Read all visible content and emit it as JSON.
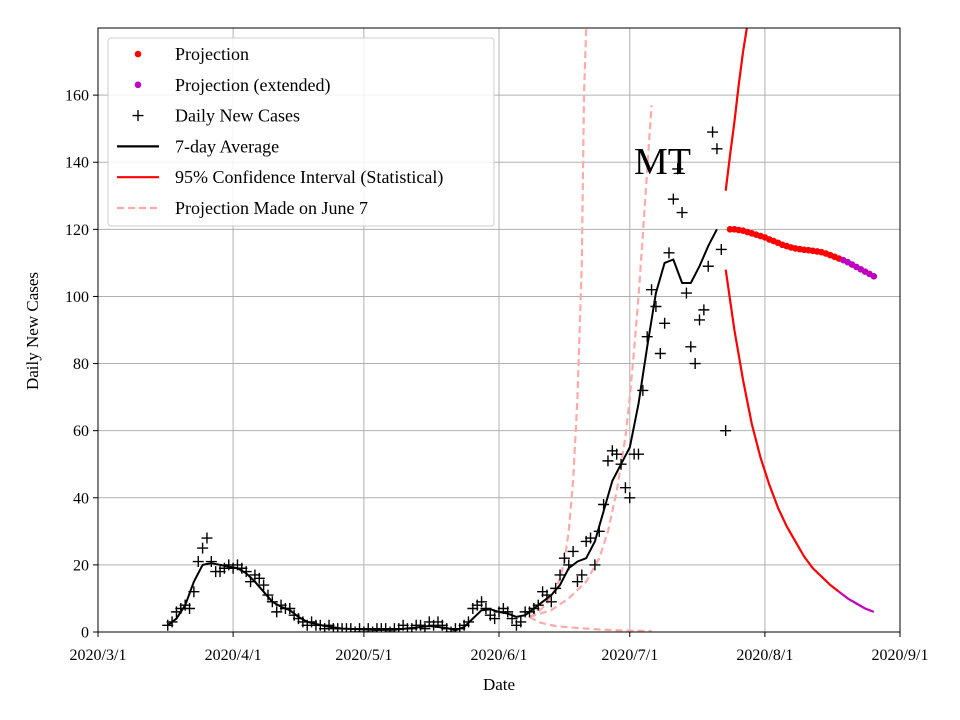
{
  "chart_data": {
    "type": "line",
    "state_label": "MT",
    "xlabel": "Date",
    "ylabel": "Daily New Cases",
    "xlim": [
      0,
      184
    ],
    "ylim": [
      0,
      180
    ],
    "x_ticks": [
      {
        "day": 0,
        "label": "2020/3/1"
      },
      {
        "day": 31,
        "label": "2020/4/1"
      },
      {
        "day": 61,
        "label": "2020/5/1"
      },
      {
        "day": 92,
        "label": "2020/6/1"
      },
      {
        "day": 122,
        "label": "2020/7/1"
      },
      {
        "day": 153,
        "label": "2020/8/1"
      },
      {
        "day": 184,
        "label": "2020/9/1"
      }
    ],
    "y_ticks": [
      0,
      20,
      40,
      60,
      80,
      100,
      120,
      140,
      160
    ],
    "grid": true,
    "legend": {
      "placement": "top-left",
      "entries": [
        {
          "label": "Projection",
          "kind": "dot",
          "color": "#ff0000"
        },
        {
          "label": "Projection (extended)",
          "kind": "dot",
          "color": "#bf00bf"
        },
        {
          "label": "Daily New Cases",
          "kind": "plus",
          "color": "#000000"
        },
        {
          "label": "7-day Average",
          "kind": "line",
          "color": "#000000"
        },
        {
          "label": "95% Confidence Interval (Statistical)",
          "kind": "line",
          "color": "#ff0000"
        },
        {
          "label": "Projection Made on June 7",
          "kind": "dash",
          "color": "#ffaaaa"
        }
      ]
    },
    "daily_new_cases": [
      [
        16,
        2
      ],
      [
        17,
        3
      ],
      [
        18,
        6
      ],
      [
        19,
        7
      ],
      [
        20,
        8
      ],
      [
        21,
        7
      ],
      [
        22,
        12
      ],
      [
        23,
        21
      ],
      [
        24,
        25
      ],
      [
        25,
        28
      ],
      [
        26,
        21
      ],
      [
        27,
        18
      ],
      [
        28,
        18
      ],
      [
        29,
        19
      ],
      [
        30,
        20
      ],
      [
        31,
        19
      ],
      [
        32,
        20
      ],
      [
        33,
        19
      ],
      [
        34,
        18
      ],
      [
        35,
        15
      ],
      [
        36,
        17
      ],
      [
        37,
        16
      ],
      [
        38,
        14
      ],
      [
        39,
        11
      ],
      [
        40,
        9
      ],
      [
        41,
        6
      ],
      [
        42,
        8
      ],
      [
        43,
        7
      ],
      [
        44,
        7
      ],
      [
        45,
        5
      ],
      [
        46,
        4
      ],
      [
        47,
        3
      ],
      [
        48,
        2
      ],
      [
        49,
        3
      ],
      [
        50,
        2
      ],
      [
        51,
        2
      ],
      [
        52,
        1
      ],
      [
        53,
        2
      ],
      [
        54,
        1
      ],
      [
        55,
        1
      ],
      [
        56,
        1
      ],
      [
        57,
        1
      ],
      [
        58,
        1
      ],
      [
        59,
        0
      ],
      [
        60,
        1
      ],
      [
        61,
        0
      ],
      [
        62,
        1
      ],
      [
        63,
        0
      ],
      [
        64,
        1
      ],
      [
        65,
        1
      ],
      [
        66,
        1
      ],
      [
        67,
        0
      ],
      [
        68,
        1
      ],
      [
        69,
        1
      ],
      [
        70,
        2
      ],
      [
        71,
        1
      ],
      [
        72,
        1
      ],
      [
        73,
        2
      ],
      [
        74,
        2
      ],
      [
        75,
        1
      ],
      [
        76,
        3
      ],
      [
        77,
        2
      ],
      [
        78,
        3
      ],
      [
        79,
        2
      ],
      [
        80,
        1
      ],
      [
        81,
        0
      ],
      [
        82,
        1
      ],
      [
        83,
        1
      ],
      [
        84,
        2
      ],
      [
        85,
        3
      ],
      [
        86,
        7
      ],
      [
        87,
        8
      ],
      [
        88,
        9
      ],
      [
        89,
        7
      ],
      [
        90,
        5
      ],
      [
        91,
        4
      ],
      [
        92,
        6
      ],
      [
        93,
        7
      ],
      [
        94,
        6
      ],
      [
        95,
        4
      ],
      [
        96,
        2
      ],
      [
        97,
        3
      ],
      [
        98,
        6
      ],
      [
        99,
        6
      ],
      [
        100,
        7
      ],
      [
        101,
        8
      ],
      [
        102,
        12
      ],
      [
        103,
        11
      ],
      [
        104,
        9
      ],
      [
        105,
        13
      ],
      [
        106,
        17
      ],
      [
        107,
        22
      ],
      [
        108,
        20
      ],
      [
        109,
        24
      ],
      [
        110,
        15
      ],
      [
        111,
        17
      ],
      [
        112,
        27
      ],
      [
        113,
        28
      ],
      [
        114,
        20
      ],
      [
        115,
        30
      ],
      [
        116,
        38
      ],
      [
        117,
        51
      ],
      [
        118,
        54
      ],
      [
        119,
        53
      ],
      [
        120,
        50
      ],
      [
        121,
        43
      ],
      [
        122,
        40
      ],
      [
        123,
        53
      ],
      [
        124,
        53
      ],
      [
        125,
        72
      ],
      [
        126,
        88
      ],
      [
        127,
        102
      ],
      [
        128,
        97
      ],
      [
        129,
        83
      ],
      [
        130,
        92
      ],
      [
        131,
        113
      ],
      [
        132,
        129
      ],
      [
        133,
        138
      ],
      [
        134,
        125
      ],
      [
        135,
        101
      ],
      [
        136,
        85
      ],
      [
        137,
        80
      ],
      [
        138,
        93
      ],
      [
        139,
        96
      ],
      [
        140,
        109
      ],
      [
        141,
        149
      ],
      [
        142,
        144
      ],
      [
        143,
        114
      ],
      [
        144,
        60
      ]
    ],
    "seven_day_average": [
      [
        16,
        2
      ],
      [
        18,
        4
      ],
      [
        20,
        8
      ],
      [
        22,
        15
      ],
      [
        24,
        20
      ],
      [
        26,
        20.5
      ],
      [
        28,
        20
      ],
      [
        30,
        19.5
      ],
      [
        32,
        19
      ],
      [
        34,
        17.5
      ],
      [
        36,
        15
      ],
      [
        38,
        12
      ],
      [
        40,
        9
      ],
      [
        42,
        7.5
      ],
      [
        44,
        6.5
      ],
      [
        46,
        4.5
      ],
      [
        48,
        3
      ],
      [
        52,
        1.8
      ],
      [
        56,
        1
      ],
      [
        60,
        0.8
      ],
      [
        64,
        0.6
      ],
      [
        68,
        0.7
      ],
      [
        72,
        1.2
      ],
      [
        76,
        1.8
      ],
      [
        80,
        1.2
      ],
      [
        82,
        0.5
      ],
      [
        84,
        1.5
      ],
      [
        86,
        4
      ],
      [
        88,
        6.5
      ],
      [
        90,
        6.8
      ],
      [
        92,
        6
      ],
      [
        94,
        5.5
      ],
      [
        96,
        4.5
      ],
      [
        98,
        5
      ],
      [
        100,
        7
      ],
      [
        102,
        9
      ],
      [
        104,
        11
      ],
      [
        106,
        14
      ],
      [
        108,
        19
      ],
      [
        110,
        21
      ],
      [
        112,
        22
      ],
      [
        114,
        27
      ],
      [
        116,
        36
      ],
      [
        118,
        45
      ],
      [
        120,
        50
      ],
      [
        122,
        55
      ],
      [
        124,
        68
      ],
      [
        126,
        85
      ],
      [
        128,
        101
      ],
      [
        130,
        110
      ],
      [
        132,
        111
      ],
      [
        134,
        104
      ],
      [
        136,
        104
      ],
      [
        138,
        109
      ],
      [
        140,
        115
      ],
      [
        142,
        120
      ]
    ],
    "projection": [
      [
        145,
        120
      ],
      [
        146,
        120
      ],
      [
        147,
        119.8
      ],
      [
        148,
        119.6
      ],
      [
        149,
        119.2
      ],
      [
        150,
        118.8
      ],
      [
        151,
        118.4
      ],
      [
        152,
        118
      ],
      [
        153,
        117.6
      ],
      [
        154,
        117
      ],
      [
        155,
        116.5
      ],
      [
        156,
        116
      ],
      [
        157,
        115.4
      ],
      [
        158,
        115
      ],
      [
        159,
        114.6
      ],
      [
        160,
        114.3
      ],
      [
        161,
        114.1
      ],
      [
        162,
        113.9
      ],
      [
        163,
        113.8
      ],
      [
        164,
        113.6
      ],
      [
        165,
        113.4
      ],
      [
        166,
        113.2
      ],
      [
        167,
        112.8
      ],
      [
        168,
        112.3
      ],
      [
        169,
        111.8
      ],
      [
        170,
        111.3
      ]
    ],
    "projection_extended": [
      [
        171,
        110.8
      ],
      [
        172,
        110.2
      ],
      [
        173,
        109.5
      ],
      [
        174,
        108.8
      ],
      [
        175,
        108.1
      ],
      [
        176,
        107.4
      ],
      [
        177,
        106.7
      ],
      [
        178,
        106
      ]
    ],
    "ci_upper": [
      [
        144,
        131.5
      ],
      [
        145,
        142
      ],
      [
        146,
        152
      ],
      [
        147,
        163
      ],
      [
        148,
        173
      ],
      [
        149,
        181
      ]
    ],
    "ci_lower": [
      [
        144,
        108
      ],
      [
        146,
        90
      ],
      [
        148,
        75
      ],
      [
        150,
        62
      ],
      [
        152,
        52
      ],
      [
        154,
        44
      ],
      [
        156,
        37
      ],
      [
        158,
        31.5
      ],
      [
        160,
        27
      ],
      [
        162,
        22.5
      ],
      [
        164,
        19
      ],
      [
        166,
        16.5
      ],
      [
        168,
        14
      ],
      [
        170,
        12
      ]
    ],
    "ci_lower_extended": [
      [
        170,
        12
      ],
      [
        172,
        10
      ],
      [
        174,
        8.5
      ],
      [
        176,
        7
      ],
      [
        178,
        6
      ]
    ],
    "june7_projection_upper_a": [
      [
        99,
        4.5
      ],
      [
        101,
        6
      ],
      [
        103,
        8.5
      ],
      [
        105,
        13
      ],
      [
        106,
        16
      ],
      [
        107,
        21
      ],
      [
        108,
        30
      ],
      [
        109,
        45
      ],
      [
        110,
        70
      ],
      [
        111,
        110
      ],
      [
        111.5,
        160
      ],
      [
        112,
        180
      ]
    ],
    "june7_projection_upper_b": [
      [
        99,
        4.5
      ],
      [
        104,
        6.5
      ],
      [
        108,
        10
      ],
      [
        112,
        15
      ],
      [
        115,
        22
      ],
      [
        117,
        30
      ],
      [
        119,
        42
      ],
      [
        121,
        58
      ],
      [
        122,
        70
      ],
      [
        123,
        84
      ],
      [
        124,
        100
      ],
      [
        125,
        118
      ],
      [
        126,
        138
      ],
      [
        127,
        157
      ]
    ],
    "june7_projection_lower": [
      [
        99,
        4.5
      ],
      [
        101,
        3
      ],
      [
        103,
        2.3
      ],
      [
        105,
        1.8
      ],
      [
        108,
        1.4
      ],
      [
        112,
        1
      ],
      [
        116,
        0.7
      ],
      [
        120,
        0.5
      ],
      [
        124,
        0.4
      ],
      [
        127,
        0.3
      ]
    ]
  }
}
